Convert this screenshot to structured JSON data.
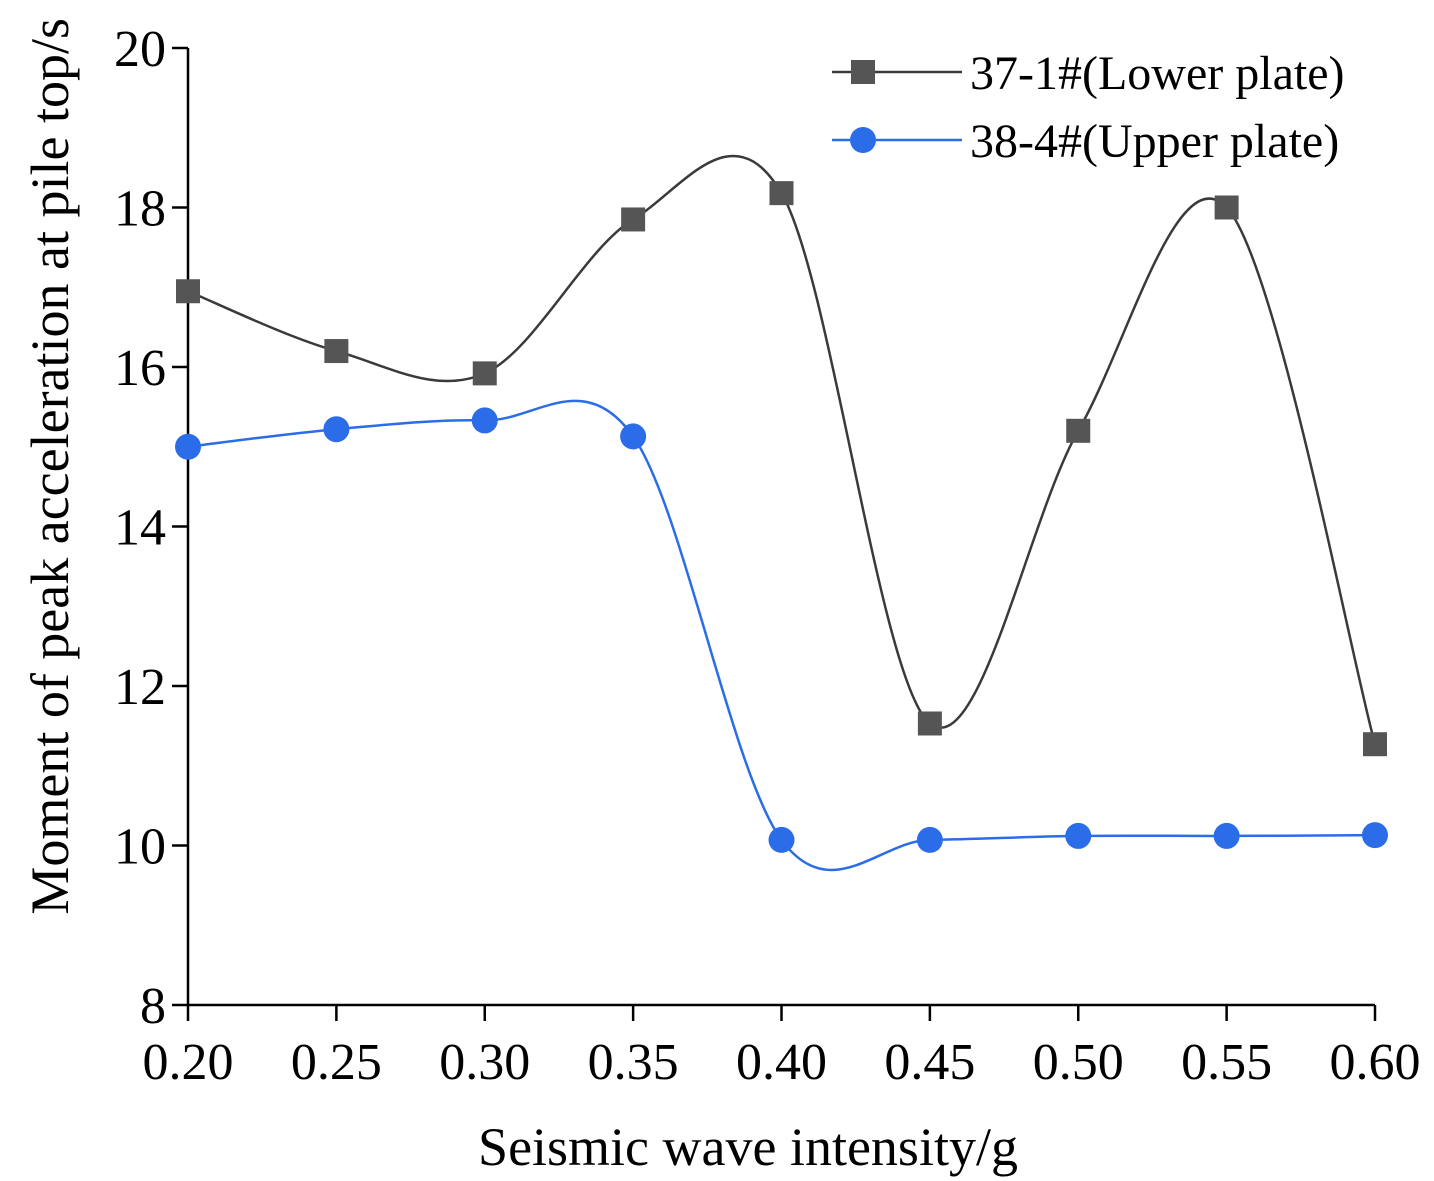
{
  "chart_data": {
    "type": "line",
    "title": "",
    "xlabel": "Seismic wave intensity/g",
    "ylabel": "Moment of peak acceleration at pile top/s",
    "x": [
      0.2,
      0.25,
      0.3,
      0.35,
      0.4,
      0.45,
      0.5,
      0.55,
      0.6
    ],
    "x_tick_labels": [
      "0.20",
      "0.25",
      "0.30",
      "0.35",
      "0.40",
      "0.45",
      "0.50",
      "0.55",
      "0.60"
    ],
    "xlim": [
      0.2,
      0.6
    ],
    "ylim": [
      8,
      20
    ],
    "y_ticks": [
      8,
      10,
      12,
      14,
      16,
      18,
      20
    ],
    "y_tick_labels": [
      "8",
      "10",
      "12",
      "14",
      "16",
      "18",
      "20"
    ],
    "grid": false,
    "legend_position": "top-right",
    "series": [
      {
        "name": "37-1#(Lower plate)",
        "marker": "square",
        "color": "#555555",
        "line_color": "#3a3a3a",
        "values": [
          16.95,
          16.2,
          15.92,
          17.85,
          18.18,
          11.53,
          15.2,
          18.0,
          11.27
        ]
      },
      {
        "name": "38-4#(Upper plate)",
        "marker": "circle",
        "color": "#2b6de8",
        "line_color": "#2b6de8",
        "values": [
          15.0,
          15.22,
          15.33,
          15.13,
          10.07,
          10.07,
          10.12,
          10.12,
          10.13
        ]
      }
    ]
  }
}
